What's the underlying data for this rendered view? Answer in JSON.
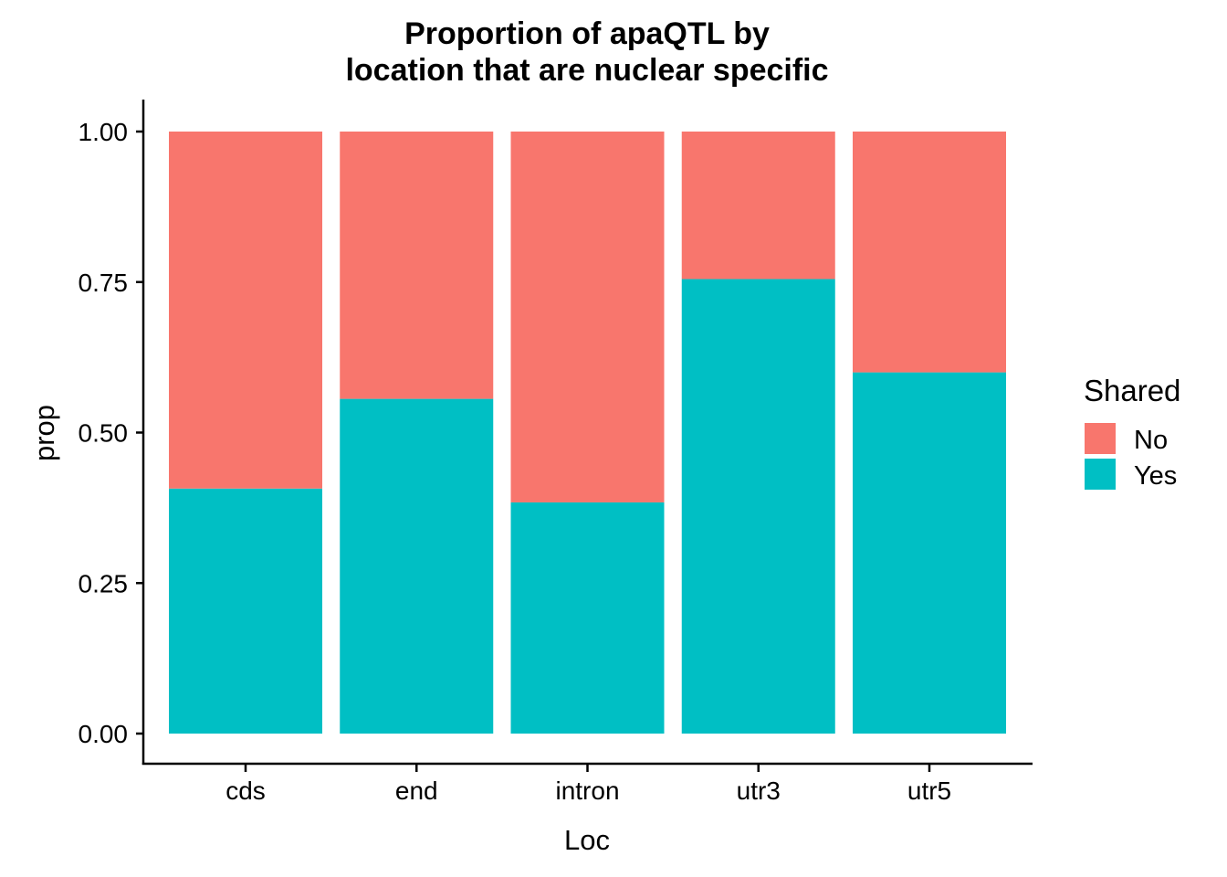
{
  "chart_data": {
    "type": "bar",
    "stacked": true,
    "title_lines": [
      "Proportion of apaQTL by",
      "location that are nuclear specific"
    ],
    "xlabel": "Loc",
    "ylabel": "prop",
    "categories": [
      "cds",
      "end",
      "intron",
      "utr3",
      "utr5"
    ],
    "ylim": [
      0,
      1
    ],
    "yticks": [
      "0.00",
      "0.25",
      "0.50",
      "0.75",
      "1.00"
    ],
    "series": [
      {
        "name": "Yes",
        "color": "#00BFC4",
        "values": [
          0.407,
          0.556,
          0.384,
          0.755,
          0.6
        ]
      },
      {
        "name": "No",
        "color": "#F8766D",
        "values": [
          0.593,
          0.444,
          0.616,
          0.245,
          0.4
        ]
      }
    ],
    "legend": {
      "title": "Shared",
      "position": "right",
      "items": [
        {
          "label": "No",
          "color": "#F8766D"
        },
        {
          "label": "Yes",
          "color": "#00BFC4"
        }
      ]
    },
    "grid": false
  }
}
